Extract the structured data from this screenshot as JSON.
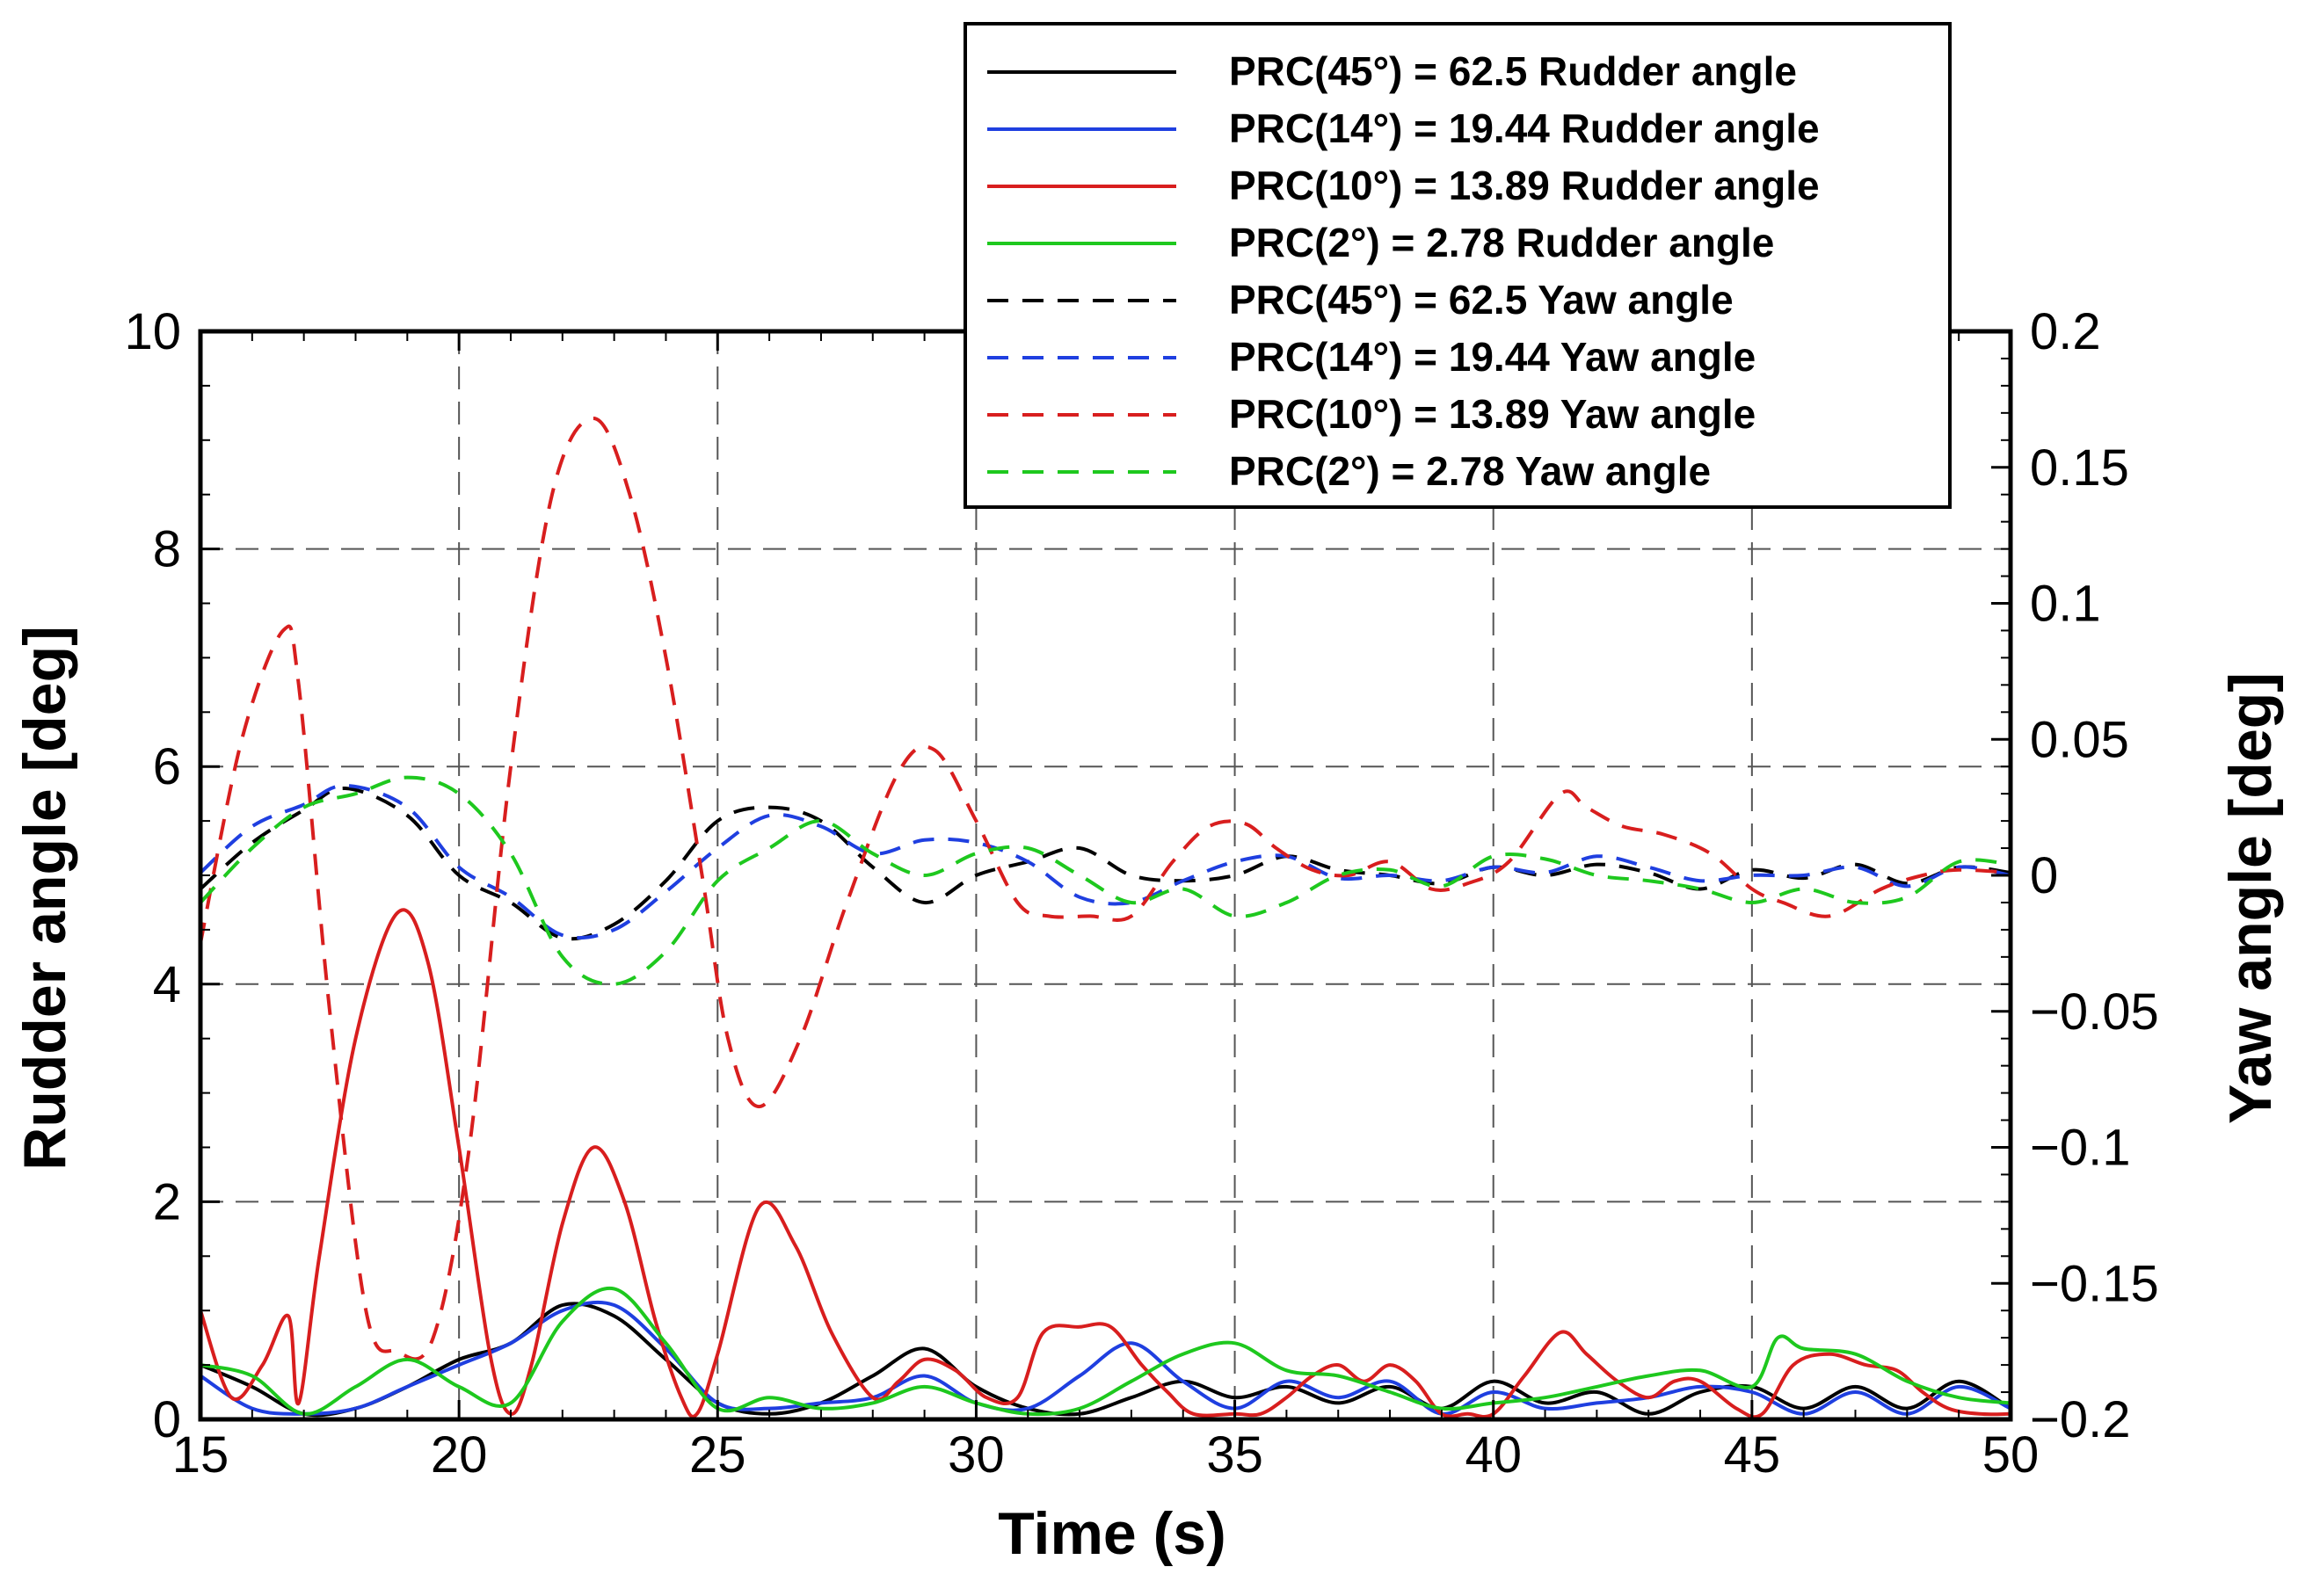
{
  "chart_data": {
    "type": "line",
    "xlabel": "Time (s)",
    "ylabel": "Rudder angle [deg]",
    "y2label": "Yaw angle [deg]",
    "xlim": [
      15,
      50
    ],
    "ylim": [
      0,
      10
    ],
    "y2lim": [
      -0.2,
      0.2
    ],
    "xticks": [
      "15",
      "20",
      "25",
      "30",
      "35",
      "40",
      "45",
      "50"
    ],
    "yticks": [
      "0",
      "2",
      "4",
      "6",
      "8",
      "10"
    ],
    "y2ticks": [
      "−0.2",
      "−0.15",
      "−0.1",
      "−0.05",
      "0",
      "0.05",
      "0.1",
      "0.15",
      "0.2"
    ],
    "grid": true,
    "legend_position": "top-right",
    "colors": {
      "black": "#000000",
      "blue": "#1f3fe0",
      "red": "#d81e1e",
      "green": "#1ec81e"
    },
    "series": [
      {
        "name": "PRC(45°) = 62.5 Rudder angle",
        "axis": "left",
        "style": "solid",
        "color": "#000000",
        "x": [
          15,
          16,
          17,
          18,
          19,
          20,
          21,
          22,
          23,
          24,
          25,
          26,
          27,
          28,
          29,
          30,
          31,
          32,
          33,
          34,
          35,
          36,
          37,
          38,
          39,
          40,
          41,
          42,
          43,
          44,
          45,
          46,
          47,
          48,
          49,
          50
        ],
        "y": [
          0.5,
          0.3,
          0.05,
          0.1,
          0.3,
          0.55,
          0.7,
          1.05,
          0.95,
          0.55,
          0.15,
          0.05,
          0.15,
          0.4,
          0.65,
          0.3,
          0.1,
          0.05,
          0.2,
          0.35,
          0.2,
          0.3,
          0.15,
          0.3,
          0.1,
          0.35,
          0.15,
          0.25,
          0.05,
          0.25,
          0.3,
          0.1,
          0.3,
          0.1,
          0.35,
          0.1
        ]
      },
      {
        "name": "PRC(14°) = 19.44 Rudder angle",
        "axis": "left",
        "style": "solid",
        "color": "#1f3fe0",
        "x": [
          15,
          16,
          17,
          18,
          19,
          20,
          21,
          22,
          23,
          24,
          25,
          26,
          27,
          28,
          29,
          30,
          31,
          32,
          33,
          34,
          35,
          36,
          37,
          38,
          39,
          40,
          41,
          42,
          43,
          44,
          45,
          46,
          47,
          48,
          49,
          50
        ],
        "y": [
          0.4,
          0.1,
          0.05,
          0.1,
          0.3,
          0.5,
          0.7,
          1.0,
          1.05,
          0.65,
          0.15,
          0.1,
          0.15,
          0.2,
          0.4,
          0.15,
          0.1,
          0.4,
          0.7,
          0.35,
          0.1,
          0.35,
          0.2,
          0.35,
          0.05,
          0.25,
          0.1,
          0.15,
          0.2,
          0.3,
          0.25,
          0.05,
          0.25,
          0.05,
          0.3,
          0.1
        ]
      },
      {
        "name": "PRC(10°) = 13.89 Rudder angle",
        "axis": "left",
        "style": "solid",
        "color": "#d81e1e",
        "x": [
          15,
          15.6,
          16.2,
          16.7,
          16.9,
          17.3,
          18,
          18.8,
          19.4,
          20,
          20.6,
          21,
          21.4,
          22,
          22.6,
          23.2,
          23.8,
          24.3,
          24.6,
          25,
          25.8,
          26.5,
          27.2,
          28,
          28.5,
          29,
          29.6,
          30.2,
          30.8,
          31.3,
          32,
          32.6,
          33.2,
          33.7,
          34.2,
          35,
          35.5,
          36,
          36.5,
          37,
          37.5,
          38,
          38.5,
          39,
          39.5,
          40,
          40.6,
          41.3,
          41.8,
          42.4,
          43,
          43.5,
          44,
          44.7,
          45.2,
          45.8,
          46.5,
          47.2,
          47.8,
          48.3,
          48.8,
          49.4,
          50
        ],
        "y": [
          1.0,
          0.2,
          0.5,
          0.95,
          0.15,
          1.5,
          3.5,
          4.65,
          4.2,
          2.5,
          0.6,
          0.05,
          0.5,
          1.8,
          2.5,
          2.0,
          0.9,
          0.2,
          0.05,
          0.6,
          1.95,
          1.6,
          0.8,
          0.2,
          0.35,
          0.55,
          0.45,
          0.2,
          0.2,
          0.8,
          0.85,
          0.85,
          0.5,
          0.25,
          0.05,
          0.05,
          0.05,
          0.2,
          0.4,
          0.5,
          0.35,
          0.5,
          0.35,
          0.05,
          0.05,
          0.05,
          0.4,
          0.8,
          0.6,
          0.35,
          0.2,
          0.35,
          0.35,
          0.1,
          0.05,
          0.5,
          0.6,
          0.5,
          0.45,
          0.25,
          0.1,
          0.05,
          0.05
        ]
      },
      {
        "name": "PRC(2°) = 2.78 Rudder angle",
        "axis": "left",
        "style": "solid",
        "color": "#1ec81e",
        "x": [
          15,
          16,
          17,
          18,
          19,
          20,
          21,
          22,
          23,
          24,
          25,
          26,
          27,
          28,
          29,
          30,
          31,
          32,
          33,
          34,
          35,
          36,
          37,
          38,
          39,
          40,
          41,
          42,
          43,
          44,
          45,
          45.5,
          46,
          47,
          48,
          49,
          50
        ],
        "y": [
          0.5,
          0.4,
          0.05,
          0.3,
          0.55,
          0.3,
          0.15,
          0.9,
          1.2,
          0.7,
          0.1,
          0.2,
          0.1,
          0.15,
          0.3,
          0.15,
          0.05,
          0.1,
          0.35,
          0.6,
          0.7,
          0.45,
          0.4,
          0.25,
          0.1,
          0.15,
          0.2,
          0.3,
          0.4,
          0.45,
          0.3,
          0.75,
          0.65,
          0.6,
          0.35,
          0.2,
          0.15
        ]
      },
      {
        "name": "PRC(45°) = 62.5 Yaw angle",
        "axis": "right",
        "style": "dashed",
        "color": "#000000",
        "x": [
          15,
          16,
          17,
          17.8,
          19,
          20,
          21,
          22,
          23,
          24,
          25,
          26,
          27,
          28,
          29,
          30,
          31,
          32,
          33,
          34,
          35,
          36,
          37,
          38,
          39,
          40,
          41,
          42,
          43,
          44,
          45,
          46,
          47,
          48,
          49,
          50
        ],
        "y": [
          -0.005,
          0.012,
          0.024,
          0.032,
          0.022,
          0.0,
          -0.01,
          -0.023,
          -0.018,
          -0.002,
          0.02,
          0.025,
          0.02,
          0.003,
          -0.01,
          0.0,
          0.005,
          0.01,
          0.0,
          -0.002,
          0.0,
          0.007,
          0.002,
          0.0,
          -0.003,
          0.003,
          0.0,
          0.004,
          0.001,
          -0.005,
          0.002,
          -0.001,
          0.004,
          -0.003,
          0.003,
          0.001
        ]
      },
      {
        "name": "PRC(14°) = 19.44 Yaw angle",
        "axis": "right",
        "style": "dashed",
        "color": "#1f3fe0",
        "x": [
          15,
          16,
          17,
          17.8,
          19,
          20,
          21,
          22,
          23,
          24,
          25,
          26,
          27,
          28,
          29,
          30,
          31,
          32,
          33,
          34,
          35,
          36,
          37,
          38,
          39,
          40,
          41,
          42,
          43,
          44,
          45,
          46,
          47,
          48,
          49,
          50
        ],
        "y": [
          0.001,
          0.018,
          0.026,
          0.033,
          0.025,
          0.003,
          -0.008,
          -0.022,
          -0.02,
          -0.006,
          0.01,
          0.022,
          0.018,
          0.008,
          0.013,
          0.012,
          0.005,
          -0.008,
          -0.01,
          -0.002,
          0.005,
          0.007,
          -0.001,
          0.0,
          -0.002,
          0.003,
          0.001,
          0.007,
          0.003,
          -0.002,
          0.0,
          0.0,
          0.003,
          -0.004,
          0.003,
          0.0
        ]
      },
      {
        "name": "PRC(10°) = 13.89 Yaw angle",
        "axis": "right",
        "style": "dashed",
        "color": "#d81e1e",
        "x": [
          15,
          15.8,
          16.6,
          16.9,
          17.5,
          18.2,
          18.8,
          19.5,
          20.2,
          21,
          21.8,
          22.6,
          23.3,
          24,
          24.7,
          25.2,
          25.8,
          26.6,
          27.5,
          28.5,
          29.2,
          30,
          30.8,
          31.4,
          32.2,
          33,
          33.8,
          34.5,
          35.2,
          35.8,
          36.5,
          37.2,
          38,
          38.8,
          39.5,
          40.3,
          41.3,
          41.8,
          42.5,
          43.3,
          44.2,
          45,
          45.6,
          46.5,
          47.5,
          48.3,
          49,
          50
        ],
        "y": [
          -0.025,
          0.05,
          0.09,
          0.07,
          -0.05,
          -0.16,
          -0.175,
          -0.17,
          -0.1,
          0.04,
          0.14,
          0.168,
          0.14,
          0.08,
          0.0,
          -0.06,
          -0.085,
          -0.06,
          -0.01,
          0.038,
          0.046,
          0.02,
          -0.01,
          -0.015,
          -0.015,
          -0.015,
          0.005,
          0.018,
          0.019,
          0.01,
          0.002,
          0.0,
          0.005,
          -0.005,
          -0.003,
          0.005,
          0.03,
          0.025,
          0.018,
          0.015,
          0.008,
          -0.005,
          -0.01,
          -0.015,
          -0.005,
          0.0,
          0.002,
          0.001
        ]
      },
      {
        "name": "PRC(2°) = 2.78 Yaw angle",
        "axis": "right",
        "style": "dashed",
        "color": "#1ec81e",
        "x": [
          15,
          16,
          17,
          18,
          19,
          20,
          21,
          22,
          23,
          24,
          25,
          26,
          27,
          28,
          29,
          30,
          31,
          32,
          33,
          34,
          35,
          36,
          37,
          38,
          39,
          40,
          41,
          42,
          43,
          44,
          45,
          46,
          47,
          48,
          49,
          50
        ],
        "y": [
          -0.01,
          0.01,
          0.025,
          0.03,
          0.036,
          0.03,
          0.008,
          -0.03,
          -0.04,
          -0.028,
          -0.002,
          0.01,
          0.02,
          0.008,
          0.0,
          0.008,
          0.01,
          0.0,
          -0.01,
          -0.005,
          -0.015,
          -0.01,
          0.0,
          0.002,
          -0.004,
          0.007,
          0.006,
          0.0,
          -0.002,
          -0.005,
          -0.01,
          -0.005,
          -0.01,
          -0.008,
          0.005,
          0.004
        ]
      }
    ]
  }
}
